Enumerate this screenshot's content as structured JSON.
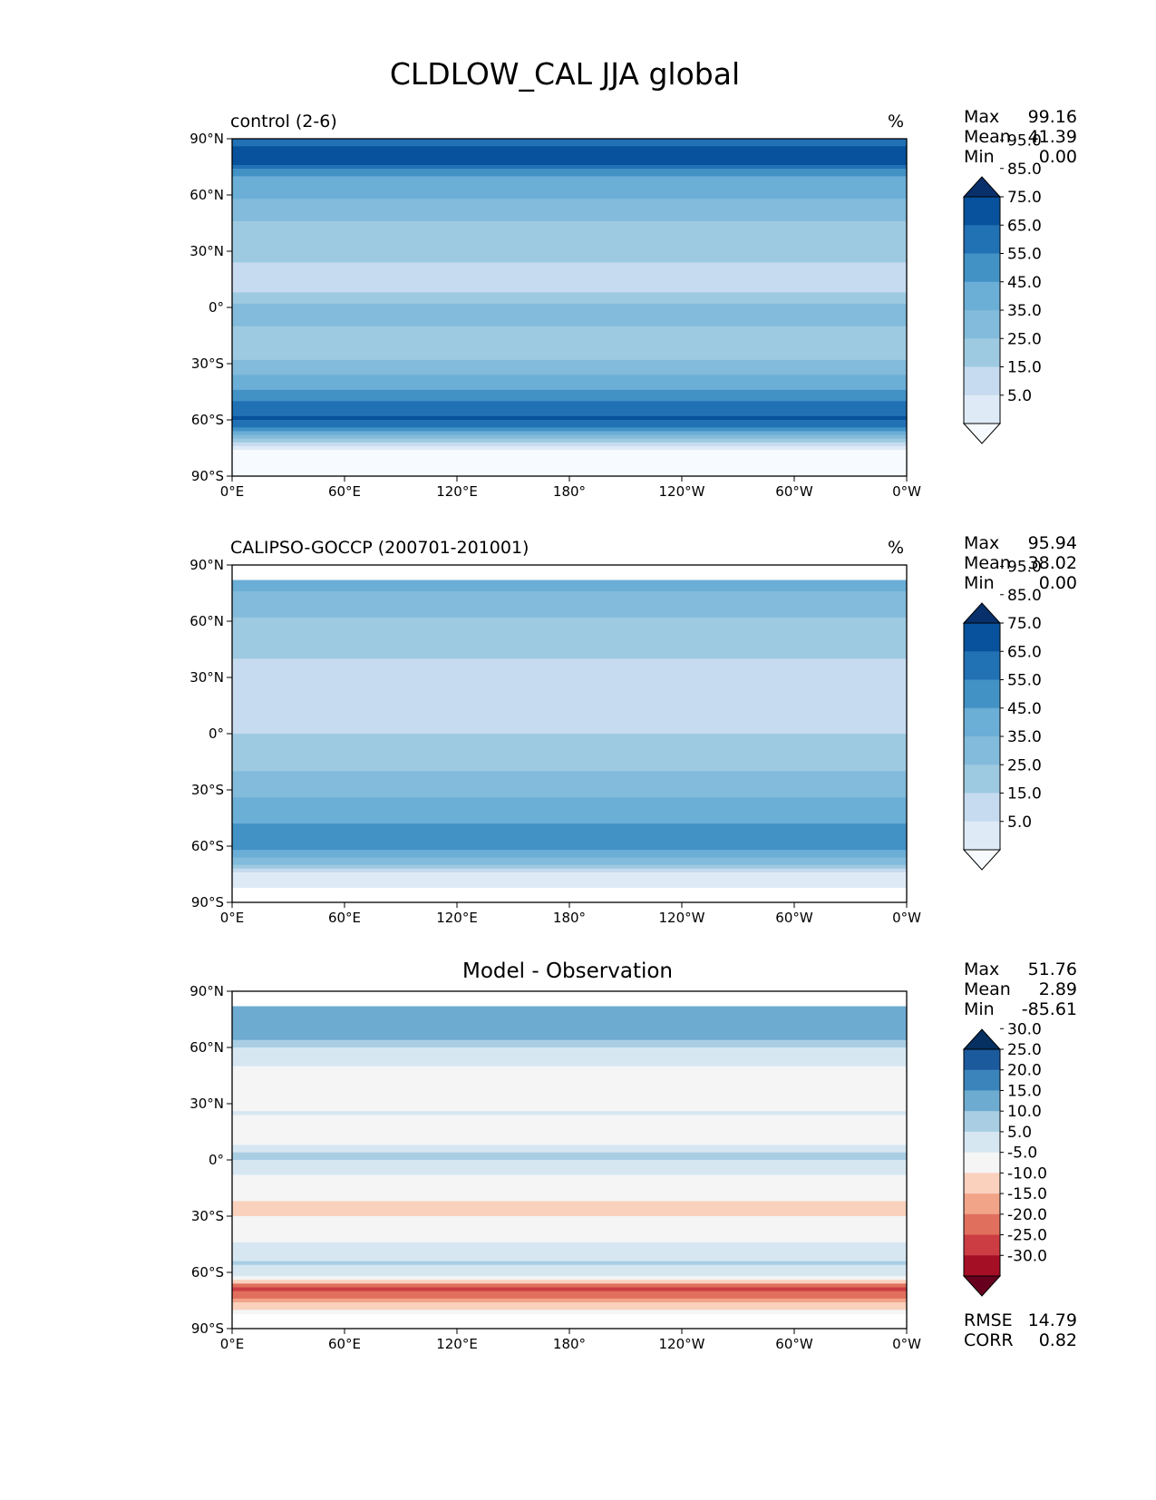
{
  "figure": {
    "title": "CLDLOW_CAL JJA global"
  },
  "chart_data": [
    {
      "type": "heatmap",
      "panel": "model",
      "title_left": "control (2-6)",
      "title_center": "",
      "units": "%",
      "stats": [
        {
          "label": "Max",
          "value": "99.16"
        },
        {
          "label": "Mean",
          "value": "41.39"
        },
        {
          "label": "Min",
          "value": "0.00"
        }
      ],
      "colorbar": {
        "levels": [
          0,
          10,
          20,
          30,
          40,
          50,
          60,
          70,
          80,
          90,
          100
        ],
        "tick_labels": [
          "5.0",
          "15.0",
          "25.0",
          "35.0",
          "45.0",
          "55.0",
          "65.0",
          "75.0",
          "85.0",
          "95.0"
        ],
        "colors": [
          "#f7fbff",
          "#deebf7",
          "#c6dbef",
          "#9ecae1",
          "#82bbdb",
          "#6baed6",
          "#4292c6",
          "#2171b5",
          "#08519c",
          "#08306b"
        ],
        "extend": "both"
      },
      "x_ticks": [
        "0°E",
        "60°E",
        "120°E",
        "180°",
        "120°W",
        "60°W",
        "0°W"
      ],
      "y_ticks": [
        "90°N",
        "60°N",
        "30°N",
        "0°",
        "30°S",
        "60°S",
        "90°S"
      ],
      "xlim": [
        0,
        360
      ],
      "ylim": [
        -90,
        90
      ],
      "zonal_profile": [
        {
          "lat": 90,
          "value": 70
        },
        {
          "lat": 80,
          "value": 90
        },
        {
          "lat": 70,
          "value": 60
        },
        {
          "lat": 55,
          "value": 48
        },
        {
          "lat": 40,
          "value": 35
        },
        {
          "lat": 25,
          "value": 30
        },
        {
          "lat": 10,
          "value": 28
        },
        {
          "lat": 0,
          "value": 45
        },
        {
          "lat": -10,
          "value": 40
        },
        {
          "lat": -25,
          "value": 35
        },
        {
          "lat": -40,
          "value": 55
        },
        {
          "lat": -50,
          "value": 70
        },
        {
          "lat": -60,
          "value": 82
        },
        {
          "lat": -68,
          "value": 50
        },
        {
          "lat": -75,
          "value": 10
        },
        {
          "lat": -90,
          "value": 5
        }
      ]
    },
    {
      "type": "heatmap",
      "panel": "observation",
      "title_left": "CALIPSO-GOCCP (200701-201001)",
      "title_center": "",
      "units": "%",
      "stats": [
        {
          "label": "Max",
          "value": "95.94"
        },
        {
          "label": "Mean",
          "value": "38.02"
        },
        {
          "label": "Min",
          "value": "0.00"
        }
      ],
      "colorbar": {
        "levels": [
          0,
          10,
          20,
          30,
          40,
          50,
          60,
          70,
          80,
          90,
          100
        ],
        "tick_labels": [
          "5.0",
          "15.0",
          "25.0",
          "35.0",
          "45.0",
          "55.0",
          "65.0",
          "75.0",
          "85.0",
          "95.0"
        ],
        "colors": [
          "#f7fbff",
          "#deebf7",
          "#c6dbef",
          "#9ecae1",
          "#82bbdb",
          "#6baed6",
          "#4292c6",
          "#2171b5",
          "#08519c",
          "#08306b"
        ],
        "extend": "both"
      },
      "x_ticks": [
        "0°E",
        "60°E",
        "120°E",
        "180°",
        "120°W",
        "60°W",
        "0°W"
      ],
      "y_ticks": [
        "90°N",
        "60°N",
        "30°N",
        "0°",
        "30°S",
        "60°S",
        "90°S"
      ],
      "xlim": [
        0,
        360
      ],
      "ylim": [
        -90,
        90
      ],
      "data_lat_range": [
        -82,
        82
      ],
      "zonal_profile": [
        {
          "lat": 82,
          "value": 60
        },
        {
          "lat": 70,
          "value": 42
        },
        {
          "lat": 55,
          "value": 38
        },
        {
          "lat": 40,
          "value": 30
        },
        {
          "lat": 25,
          "value": 25
        },
        {
          "lat": 10,
          "value": 25
        },
        {
          "lat": 0,
          "value": 30
        },
        {
          "lat": -10,
          "value": 35
        },
        {
          "lat": -25,
          "value": 42
        },
        {
          "lat": -40,
          "value": 55
        },
        {
          "lat": -50,
          "value": 62
        },
        {
          "lat": -60,
          "value": 66
        },
        {
          "lat": -68,
          "value": 45
        },
        {
          "lat": -75,
          "value": 18
        },
        {
          "lat": -82,
          "value": 10
        }
      ]
    },
    {
      "type": "heatmap",
      "panel": "difference",
      "title_left": "",
      "title_center": "Model - Observation",
      "units": "",
      "stats": [
        {
          "label": "Max",
          "value": "51.76"
        },
        {
          "label": "Mean",
          "value": "2.89"
        },
        {
          "label": "Min",
          "value": "-85.61"
        }
      ],
      "colorbar": {
        "levels": [
          -35,
          -30,
          -25,
          -20,
          -15,
          -10,
          -5,
          5,
          10,
          15,
          20,
          25,
          30,
          35
        ],
        "tick_labels": [
          "-30.0",
          "-25.0",
          "-20.0",
          "-15.0",
          "-10.0",
          "-5.0",
          "5.0",
          "10.0",
          "15.0",
          "20.0",
          "25.0",
          "30.0"
        ],
        "colors": [
          "#67001f",
          "#a50f26",
          "#cb3d42",
          "#e0705d",
          "#f2a489",
          "#f9d1bd",
          "#f5f5f5",
          "#d6e7f2",
          "#a9cee4",
          "#6eabd1",
          "#3a84bb",
          "#1c5a9e",
          "#053061"
        ],
        "extend": "both"
      },
      "x_ticks": [
        "0°E",
        "60°E",
        "120°E",
        "180°",
        "120°W",
        "60°W",
        "0°W"
      ],
      "y_ticks": [
        "90°N",
        "60°N",
        "30°N",
        "0°",
        "30°S",
        "60°S",
        "90°S"
      ],
      "xlim": [
        0,
        360
      ],
      "ylim": [
        -90,
        90
      ],
      "data_lat_range": [
        -82,
        82
      ],
      "zonal_profile": [
        {
          "lat": 80,
          "value": 15
        },
        {
          "lat": 70,
          "value": 20
        },
        {
          "lat": 55,
          "value": 6
        },
        {
          "lat": 40,
          "value": 3
        },
        {
          "lat": 25,
          "value": 5
        },
        {
          "lat": 10,
          "value": 2
        },
        {
          "lat": 3,
          "value": 12
        },
        {
          "lat": -10,
          "value": 4
        },
        {
          "lat": -25,
          "value": -8
        },
        {
          "lat": -40,
          "value": 3
        },
        {
          "lat": -55,
          "value": 10
        },
        {
          "lat": -62,
          "value": 8
        },
        {
          "lat": -68,
          "value": -25
        },
        {
          "lat": -75,
          "value": -12
        },
        {
          "lat": -82,
          "value": 0
        }
      ],
      "extra_stats": [
        {
          "label": "RMSE",
          "value": "14.79"
        },
        {
          "label": "CORR",
          "value": "0.82"
        }
      ]
    }
  ]
}
